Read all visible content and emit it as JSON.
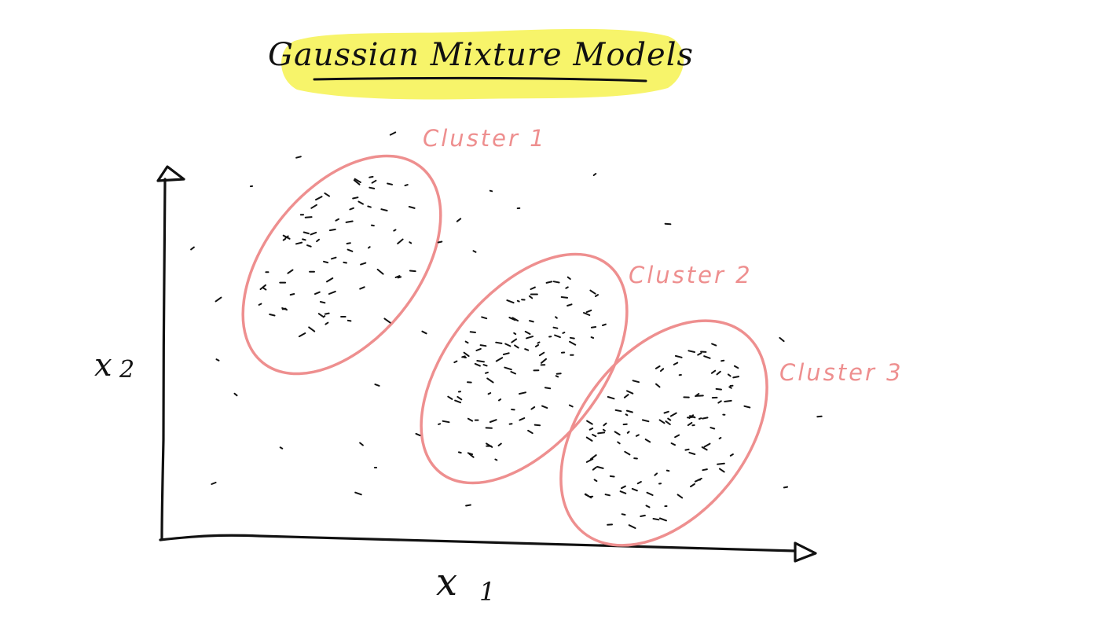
{
  "title": "Gaussian Mixture Models",
  "axes": {
    "x_label": "x",
    "x_sub": "1",
    "y_label": "x",
    "y_sub": "2"
  },
  "clusters": [
    {
      "label": "Cluster 1"
    },
    {
      "label": "Cluster 2"
    },
    {
      "label": "Cluster 3"
    }
  ],
  "colors": {
    "highlight": "#f7f46a",
    "cluster": "#ee8f8f",
    "ink": "#111111"
  }
}
